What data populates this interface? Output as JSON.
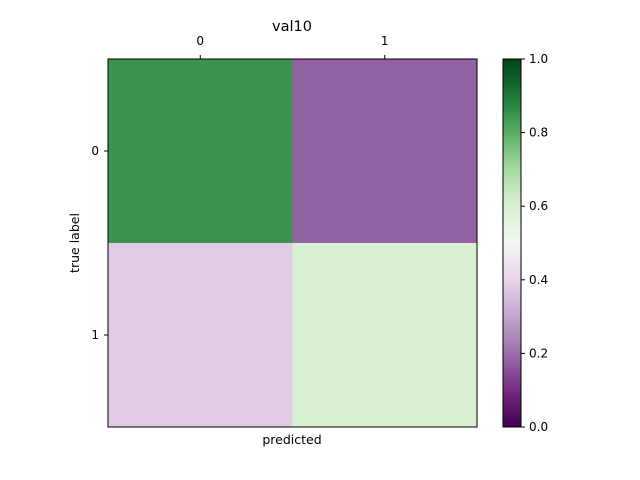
{
  "chart_data": {
    "type": "heatmap",
    "title": "val10",
    "xlabel": "predicted",
    "ylabel": "true label",
    "x_categories": [
      "0",
      "1"
    ],
    "y_categories": [
      "0",
      "1"
    ],
    "values": [
      [
        0.85,
        0.18
      ],
      [
        0.38,
        0.6
      ]
    ],
    "x_ticks_position": "top",
    "grid": false,
    "colorbar": {
      "range": [
        0.0,
        1.0
      ],
      "ticks": [
        "0.0",
        "0.2",
        "0.4",
        "0.6",
        "0.8",
        "1.0"
      ],
      "colormap": "PRGn",
      "colormap_stops": [
        "#40004b",
        "#762a83",
        "#9970ab",
        "#c2a5cf",
        "#e7d4e8",
        "#f7f7f7",
        "#d9f0d3",
        "#a6dba0",
        "#5aae61",
        "#1b7837",
        "#00441b"
      ]
    }
  }
}
